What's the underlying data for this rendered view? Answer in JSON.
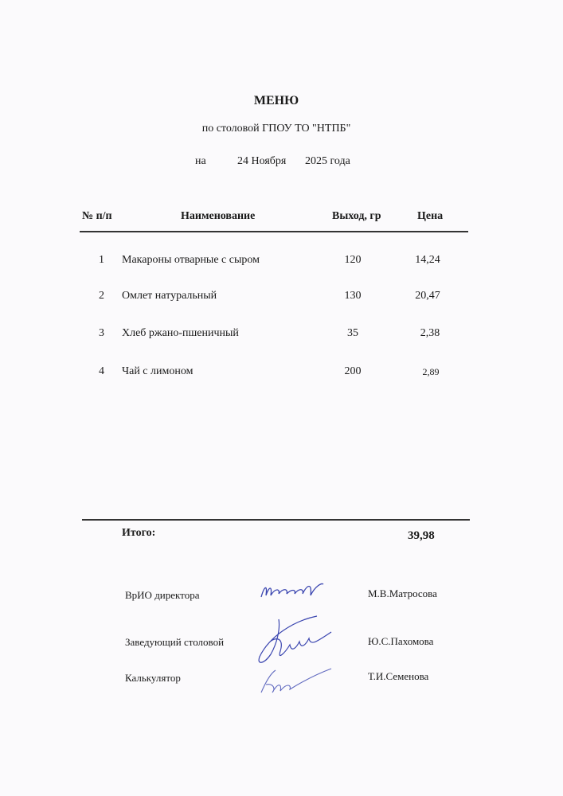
{
  "title": "МЕНЮ",
  "subtitle": "по столовой ГПОУ ТО \"НТПБ\"",
  "date": {
    "prefix": "на",
    "day_month": "24 Ноября",
    "year": "2025 года"
  },
  "table": {
    "headers": [
      "№ п/п",
      "Наименование",
      "Выход, гр",
      "Цена"
    ],
    "rows": [
      {
        "num": "1",
        "name": "Макароны отварные с сыром",
        "output": "120",
        "price": "14,24"
      },
      {
        "num": "2",
        "name": "Омлет натуральный",
        "output": "130",
        "price": "20,47"
      },
      {
        "num": "3",
        "name": "Хлеб ржано-пшеничный",
        "output": "35",
        "price": "2,38"
      },
      {
        "num": "4",
        "name": "Чай с лимоном",
        "output": "200",
        "price": "2,89"
      }
    ]
  },
  "total": {
    "label": "Итого:",
    "value": "39,98"
  },
  "signatures": [
    {
      "role": "ВрИО директора",
      "name": "М.В.Матросова"
    },
    {
      "role": "Заведующий столовой",
      "name": "Ю.С.Пахомова"
    },
    {
      "role": "Калькулятор",
      "name": "Т.И.Семенова"
    }
  ],
  "ink_color": "#3b46b0"
}
